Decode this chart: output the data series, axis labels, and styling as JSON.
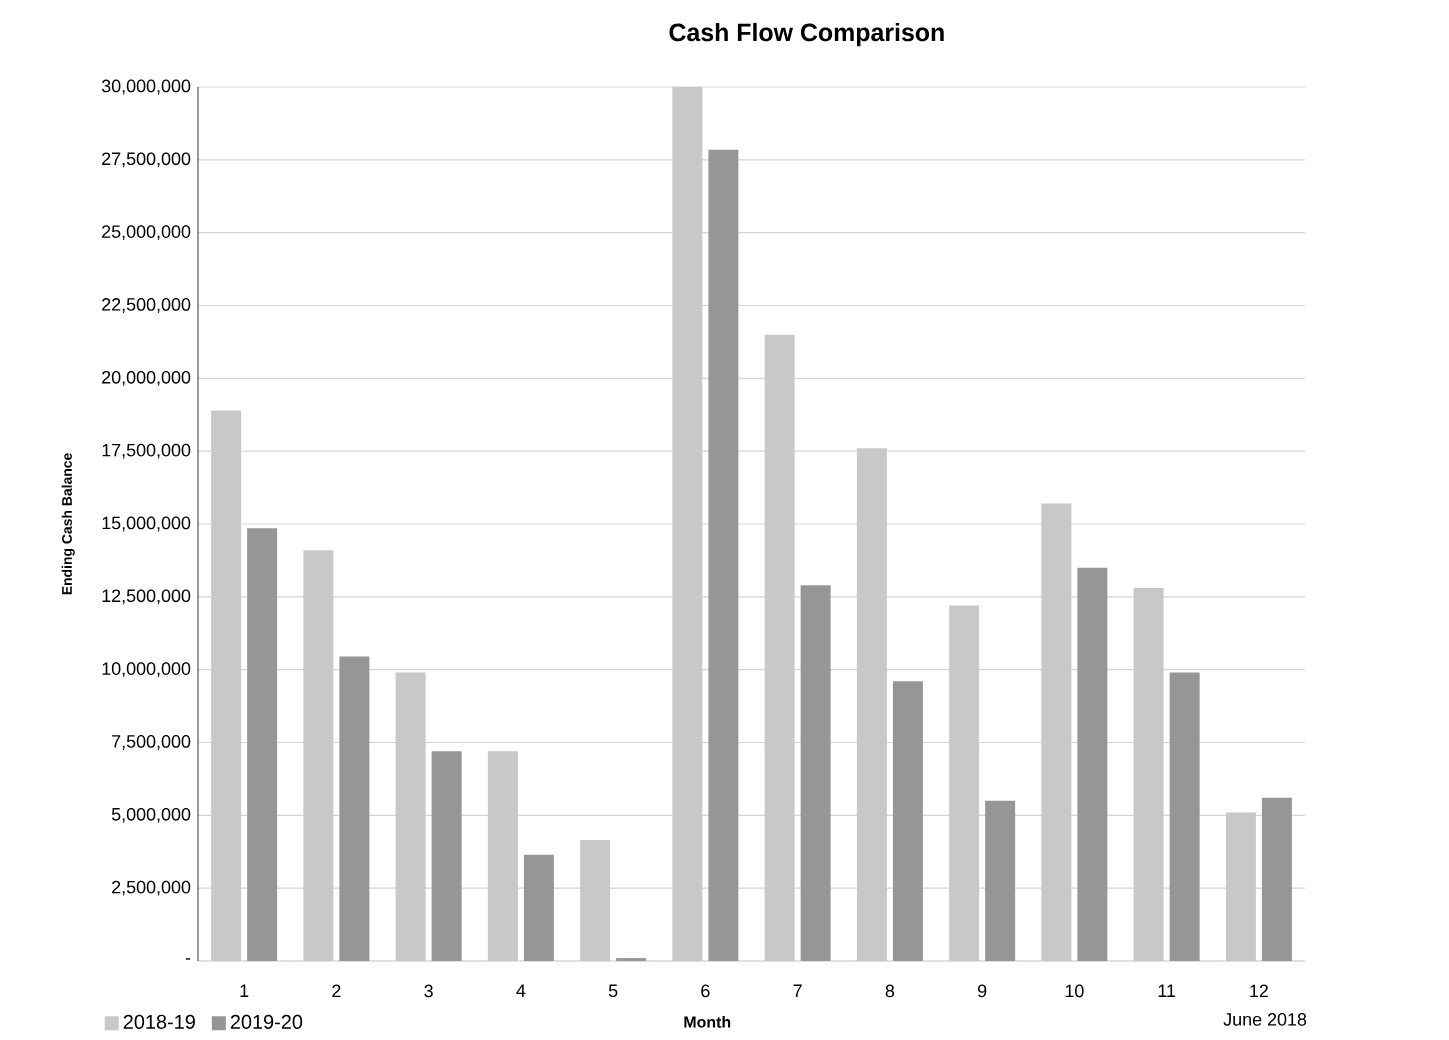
{
  "chart_data": {
    "type": "bar",
    "title": "Cash Flow Comparison",
    "xlabel": "Month",
    "ylabel": "Ending Cash Balance",
    "categories": [
      "1",
      "2",
      "3",
      "4",
      "5",
      "6",
      "7",
      "8",
      "9",
      "10",
      "11",
      "12"
    ],
    "series": [
      {
        "name": "2018-19",
        "color": "#c8c8c8",
        "values": [
          18900000,
          14100000,
          9900000,
          7200000,
          4150000,
          30000000,
          21500000,
          17600000,
          12200000,
          15700000,
          12800000,
          5100000
        ]
      },
      {
        "name": "2019-20",
        "color": "#969696",
        "values": [
          14850000,
          10450000,
          7200000,
          3650000,
          100000,
          27850000,
          12900000,
          9600000,
          5500000,
          13500000,
          9900000,
          5600000
        ]
      }
    ],
    "ylim": [
      0,
      30000000
    ],
    "yticks": [
      {
        "value": 0,
        "label": "-"
      },
      {
        "value": 2500000,
        "label": "2,500,000"
      },
      {
        "value": 5000000,
        "label": "5,000,000"
      },
      {
        "value": 7500000,
        "label": "7,500,000"
      },
      {
        "value": 10000000,
        "label": "10,000,000"
      },
      {
        "value": 12500000,
        "label": "12,500,000"
      },
      {
        "value": 15000000,
        "label": "15,000,000"
      },
      {
        "value": 17500000,
        "label": "17,500,000"
      },
      {
        "value": 20000000,
        "label": "20,000,000"
      },
      {
        "value": 22500000,
        "label": "22,500,000"
      },
      {
        "value": 25000000,
        "label": "25,000,000"
      },
      {
        "value": 27500000,
        "label": "27,500,000"
      },
      {
        "value": 30000000,
        "label": "30,000,000"
      }
    ],
    "grid": "y",
    "legend": "bottom left",
    "annotations": [
      "June 2018"
    ]
  }
}
